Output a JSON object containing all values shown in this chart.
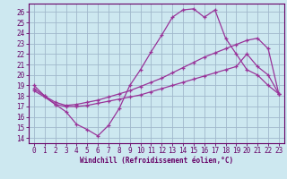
{
  "xlabel": "Windchill (Refroidissement éolien,°C)",
  "bg_color": "#cde8f0",
  "grid_color": "#a0b8cc",
  "line_color": "#993399",
  "spine_color": "#660066",
  "xlim": [
    -0.5,
    23.5
  ],
  "ylim": [
    13.5,
    26.8
  ],
  "yticks": [
    14,
    15,
    16,
    17,
    18,
    19,
    20,
    21,
    22,
    23,
    24,
    25,
    26
  ],
  "xticks": [
    0,
    1,
    2,
    3,
    4,
    5,
    6,
    7,
    8,
    9,
    10,
    11,
    12,
    13,
    14,
    15,
    16,
    17,
    18,
    19,
    20,
    21,
    22,
    23
  ],
  "line1_x": [
    0,
    1,
    2,
    3,
    4,
    5,
    6,
    7,
    8,
    9,
    10,
    11,
    12,
    13,
    14,
    15,
    16,
    17,
    18,
    19,
    20,
    21,
    22,
    23
  ],
  "line1_y": [
    19.0,
    18.0,
    17.2,
    16.5,
    15.3,
    14.8,
    14.2,
    15.2,
    16.8,
    19.0,
    20.5,
    22.2,
    23.8,
    25.5,
    26.2,
    26.3,
    25.5,
    26.2,
    23.5,
    22.0,
    20.5,
    20.0,
    19.0,
    18.2
  ],
  "line2_x": [
    0,
    1,
    2,
    3,
    4,
    5,
    6,
    7,
    8,
    9,
    10,
    11,
    12,
    13,
    14,
    15,
    16,
    17,
    18,
    19,
    20,
    21,
    22,
    23
  ],
  "line2_y": [
    18.5,
    17.9,
    17.2,
    17.0,
    17.0,
    17.1,
    17.3,
    17.5,
    17.7,
    17.9,
    18.1,
    18.4,
    18.7,
    19.0,
    19.3,
    19.6,
    19.9,
    20.2,
    20.5,
    20.8,
    22.0,
    20.8,
    20.0,
    18.2
  ],
  "line3_x": [
    0,
    1,
    2,
    3,
    4,
    5,
    6,
    7,
    8,
    9,
    10,
    11,
    12,
    13,
    14,
    15,
    16,
    17,
    18,
    19,
    20,
    21,
    22,
    23
  ],
  "line3_y": [
    18.7,
    18.0,
    17.4,
    17.1,
    17.2,
    17.4,
    17.6,
    17.9,
    18.2,
    18.5,
    18.9,
    19.3,
    19.7,
    20.2,
    20.7,
    21.2,
    21.7,
    22.1,
    22.5,
    22.9,
    23.3,
    23.5,
    22.5,
    18.2
  ],
  "tick_fontsize": 5.5,
  "xlabel_fontsize": 5.5
}
